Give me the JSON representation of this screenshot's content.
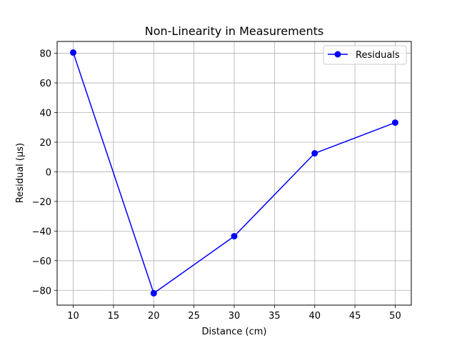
{
  "chart_data": {
    "type": "line",
    "title": "Non-Linearity in Measurements",
    "xlabel": "Distance (cm)",
    "ylabel": "Residual (µs)",
    "xlim": [
      8,
      52
    ],
    "ylim": [
      -90,
      88
    ],
    "xticks": [
      10,
      15,
      20,
      25,
      30,
      35,
      40,
      45,
      50
    ],
    "xtick_labels": [
      "10",
      "15",
      "20",
      "25",
      "30",
      "35",
      "40",
      "45",
      "50"
    ],
    "yticks": [
      -80,
      -60,
      -40,
      -20,
      0,
      20,
      40,
      60,
      80
    ],
    "ytick_labels": [
      "−80",
      "−60",
      "−40",
      "−20",
      "0",
      "20",
      "40",
      "60",
      "80"
    ],
    "grid": true,
    "legend_position": "top-right",
    "series": [
      {
        "name": "Residuals",
        "color": "#0000ff",
        "marker": "circle",
        "x": [
          10,
          20,
          30,
          40,
          50
        ],
        "y": [
          80.5,
          -82.0,
          -43.5,
          12.5,
          33.2
        ]
      }
    ]
  }
}
